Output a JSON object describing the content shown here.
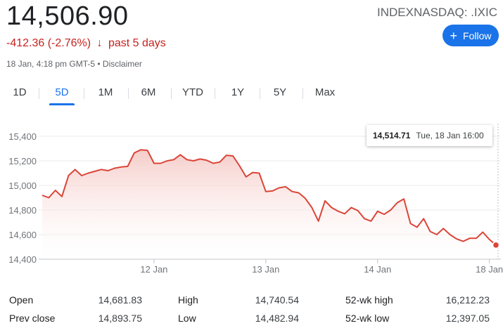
{
  "quote": {
    "price": "14,506.90",
    "ticker": "INDEXNASDAQ: .IXIC",
    "change": "-412.36 (-2.76%)",
    "change_arrow": "↓",
    "change_period": "past 5 days",
    "meta": "18 Jan, 4:18 pm GMT-5 • Disclaimer",
    "follow_label": "Follow",
    "follow_icon": "plus-icon"
  },
  "tabs": [
    "1D",
    "5D",
    "1M",
    "6M",
    "YTD",
    "1Y",
    "5Y",
    "Max"
  ],
  "active_tab": "5D",
  "tooltip": {
    "value": "14,514.71",
    "time": "Tue, 18 Jan 16:00"
  },
  "colors": {
    "line": "#db4437",
    "fill_top": "#f4c7c3",
    "accent": "#1a73e8",
    "negative": "#c5221f"
  },
  "chart_data": {
    "type": "area",
    "y_ticks": [
      "15,400",
      "15,200",
      "15,000",
      "14,800",
      "14,600",
      "14,400"
    ],
    "ylim": [
      14400,
      15400
    ],
    "x_ticks": [
      "12 Jan",
      "13 Jan",
      "14 Jan",
      "18 Jan"
    ],
    "x_tick_index": [
      17,
      34,
      51,
      68
    ],
    "grid": true,
    "series": [
      {
        "values": [
          14920,
          14900,
          14960,
          14910,
          15080,
          15130,
          15080,
          15100,
          15115,
          15130,
          15120,
          15140,
          15150,
          15155,
          15265,
          15290,
          15285,
          15180,
          15180,
          15200,
          15210,
          15250,
          15210,
          15200,
          15215,
          15205,
          15180,
          15190,
          15245,
          15240,
          15160,
          15070,
          15105,
          15100,
          14950,
          14955,
          14980,
          14990,
          14950,
          14940,
          14895,
          14820,
          14710,
          14875,
          14820,
          14790,
          14770,
          14820,
          14795,
          14730,
          14710,
          14790,
          14765,
          14800,
          14860,
          14890,
          14690,
          14660,
          14730,
          14625,
          14600,
          14650,
          14600,
          14565,
          14545,
          14570,
          14570,
          14620,
          14560,
          14514.71
        ]
      }
    ]
  },
  "stats": [
    [
      {
        "label": "Open",
        "value": "14,681.83"
      },
      {
        "label": "High",
        "value": "14,740.54"
      },
      {
        "label": "52-wk high",
        "value": "16,212.23"
      }
    ],
    [
      {
        "label": "Prev close",
        "value": "14,893.75"
      },
      {
        "label": "Low",
        "value": "14,482.94"
      },
      {
        "label": "52-wk low",
        "value": "12,397.05"
      }
    ]
  ]
}
